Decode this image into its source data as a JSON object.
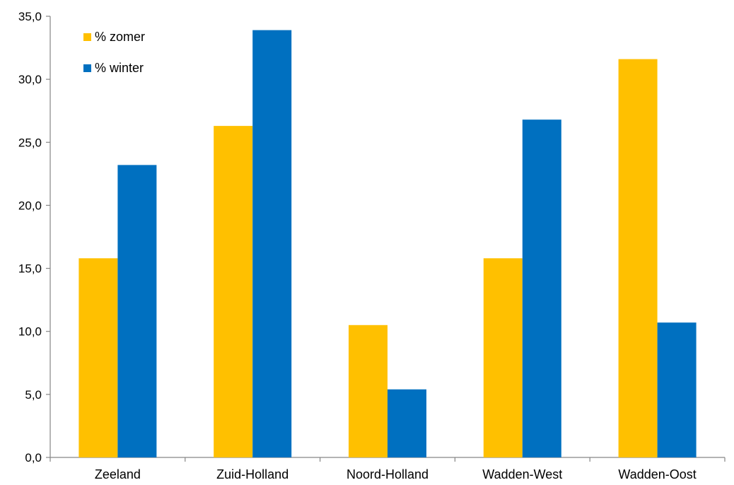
{
  "chart_data": {
    "type": "bar",
    "title": "",
    "xlabel": "",
    "ylabel": "",
    "categories": [
      "Zeeland",
      "Zuid-Holland",
      "Noord-Holland",
      "Wadden-West",
      "Wadden-Oost"
    ],
    "series": [
      {
        "name": "% zomer",
        "color": "#FFC000",
        "values": [
          15.8,
          26.3,
          10.5,
          15.8,
          31.6
        ]
      },
      {
        "name": "% winter",
        "color": "#0070C0",
        "values": [
          23.2,
          33.9,
          5.4,
          26.8,
          10.7
        ]
      }
    ],
    "ylim": [
      0,
      35
    ],
    "ytick_values": [
      0,
      5,
      10,
      15,
      20,
      25,
      30,
      35
    ],
    "ytick_labels": [
      "0,0",
      "5,0",
      "10,0",
      "15,0",
      "20,0",
      "25,0",
      "30,0",
      "35,0"
    ],
    "grid": false,
    "legend_position": "top-left"
  }
}
